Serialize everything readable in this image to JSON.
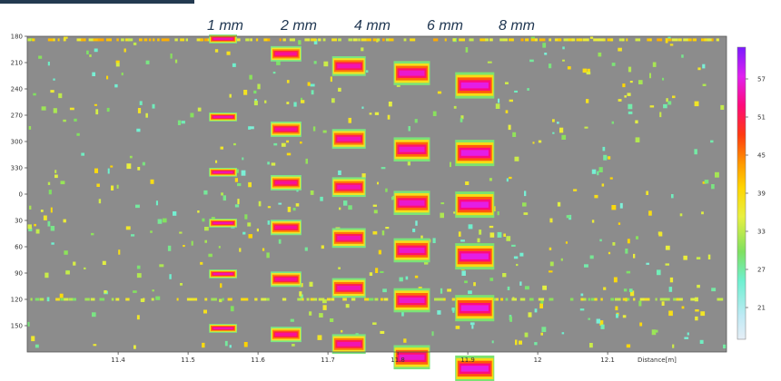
{
  "chart_data": {
    "type": "heatmap",
    "title": "",
    "xlabel": "Distance[m]",
    "ylabel": "",
    "x_range": [
      11.27,
      12.27
    ],
    "x_ticks": [
      "11.4",
      "11.5",
      "11.6",
      "11.7",
      "11.8",
      "11.9",
      "12",
      "12.1"
    ],
    "x_tick_values": [
      11.4,
      11.5,
      11.6,
      11.7,
      11.8,
      11.9,
      12.0,
      12.1
    ],
    "y_ticks": [
      "180",
      "210",
      "240",
      "270",
      "300",
      "330",
      "0",
      "30",
      "60",
      "90",
      "120",
      "150"
    ],
    "y_tick_values": [
      180,
      210,
      240,
      270,
      300,
      330,
      360,
      390,
      420,
      450,
      480,
      510
    ],
    "y_range": [
      180,
      540
    ],
    "colorbar": {
      "ticks": [
        "57",
        "51",
        "45",
        "39",
        "33",
        "27",
        "21"
      ],
      "tick_values": [
        57,
        51,
        45,
        39,
        33,
        27,
        21
      ],
      "range": [
        16,
        62
      ]
    },
    "column_labels": [
      {
        "text": "1 mm",
        "x": 11.55
      },
      {
        "text": "2 mm",
        "x": 11.64
      },
      {
        "text": "4 mm",
        "x": 11.73
      },
      {
        "text": "6 mm",
        "x": 11.82
      },
      {
        "text": "8 mm",
        "x": 11.91
      }
    ],
    "defect_columns": [
      {
        "size": "1 mm",
        "x_center": 11.55,
        "x_halfwidth": 0.02,
        "y_halfheight": 4,
        "peak": 55,
        "y_centers": [
          183,
          272,
          335,
          393,
          451,
          513
        ]
      },
      {
        "size": "2 mm",
        "x_center": 11.64,
        "x_halfwidth": 0.022,
        "y_halfheight": 7,
        "peak": 54,
        "y_centers": [
          200,
          286,
          347,
          398,
          457,
          520
        ]
      },
      {
        "size": "4 mm",
        "x_center": 11.73,
        "x_halfwidth": 0.024,
        "y_halfheight": 9,
        "peak": 55,
        "y_centers": [
          214,
          297,
          352,
          410,
          467,
          531
        ]
      },
      {
        "size": "6 mm",
        "x_center": 11.82,
        "x_halfwidth": 0.026,
        "y_halfheight": 11,
        "peak": 56,
        "y_centers": [
          222,
          309,
          370,
          424,
          481,
          546
        ]
      },
      {
        "size": "8 mm",
        "x_center": 11.91,
        "x_halfwidth": 0.028,
        "y_halfheight": 12,
        "peak": 57,
        "y_centers": [
          236,
          313,
          372,
          431,
          490,
          559
        ]
      }
    ],
    "horizontal_bands": [
      {
        "y": 184,
        "x_from": 11.27,
        "x_to": 12.27,
        "level": 38
      },
      {
        "y": 480,
        "x_from": 11.27,
        "x_to": 12.27,
        "level": 34
      }
    ]
  }
}
